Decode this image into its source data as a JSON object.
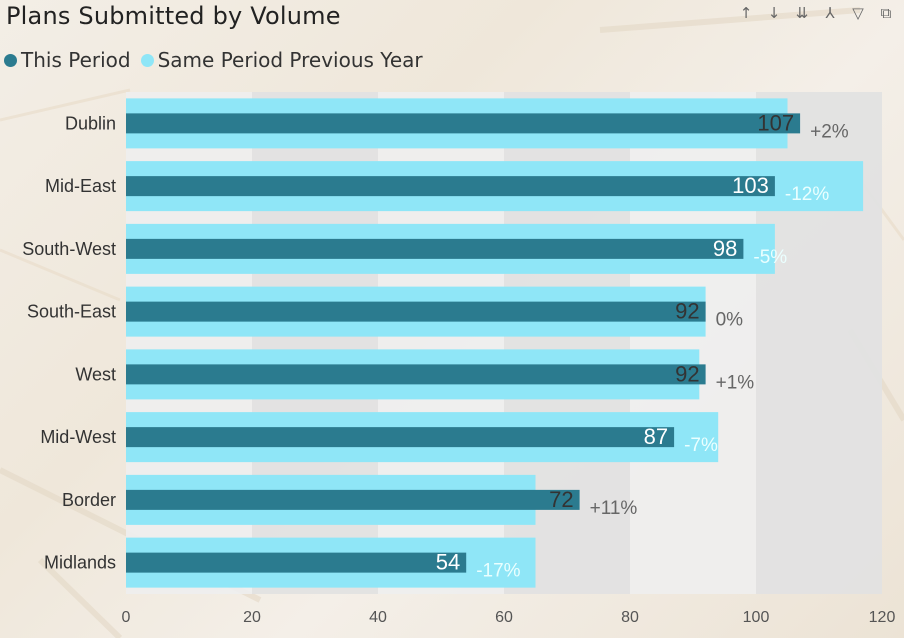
{
  "title": "Plans Submitted by Volume",
  "toolbar": {
    "icons": [
      "drill-up-icon",
      "drill-down-icon",
      "expand-all-down-icon",
      "expand-hierarchy-icon",
      "filter-icon",
      "focus-mode-icon"
    ],
    "glyphs": [
      "↑",
      "↓",
      "⇊",
      "⅄",
      "▽",
      "⧉"
    ]
  },
  "colors": {
    "this_period": "#2b7b8f",
    "previous_year": "#8fe6f7",
    "plot_background": "#eeeeee"
  },
  "chart_data": {
    "type": "bar",
    "orientation": "horizontal",
    "title": "Plans Submitted by Volume",
    "categories": [
      "Dublin",
      "Mid-East",
      "South-West",
      "South-East",
      "West",
      "Mid-West",
      "Border",
      "Midlands"
    ],
    "series": [
      {
        "name": "This Period",
        "values": [
          107,
          103,
          98,
          92,
          92,
          87,
          72,
          54
        ]
      },
      {
        "name": "Same Period Previous Year",
        "values": [
          105,
          117,
          103,
          92,
          91,
          94,
          65,
          65
        ]
      }
    ],
    "change_labels": [
      "+2%",
      "-12%",
      "-5%",
      "0%",
      "+1%",
      "-7%",
      "+11%",
      "-17%"
    ],
    "xlim": [
      0,
      120
    ],
    "xticks": [
      0,
      20,
      40,
      60,
      80,
      100,
      120
    ],
    "legend": "top-left",
    "grid": false
  }
}
